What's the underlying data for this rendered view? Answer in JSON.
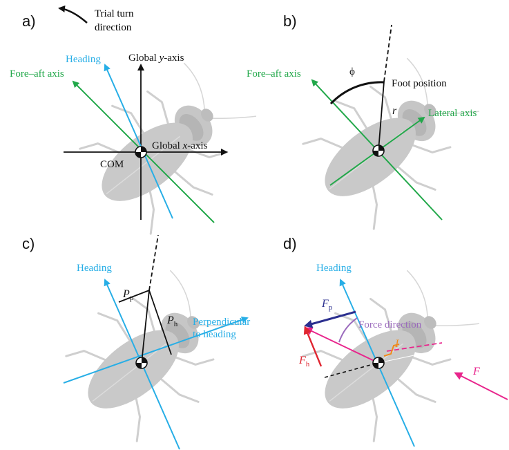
{
  "colors": {
    "green": "#22a84a",
    "blue": "#27aee6",
    "black": "#111111",
    "purple": "#9b6bbd",
    "navy": "#2b2f8f",
    "red": "#e02530",
    "magenta": "#e8258c",
    "orange": "#f08a1c",
    "body_gray": "#c9c9c9"
  },
  "panels": {
    "a": {
      "letter": "a)",
      "turn_label_line1": "Trial turn",
      "turn_label_line2": "direction",
      "heading": "Heading",
      "global_y_prefix": "Global ",
      "global_y_var": "y",
      "global_y_suffix": "-axis",
      "fore_aft": "Fore–aft axis",
      "global_x_prefix": "Global ",
      "global_x_var": "x",
      "global_x_suffix": "-axis",
      "com": "COM"
    },
    "b": {
      "letter": "b)",
      "fore_aft": "Fore–aft axis",
      "phi": "ϕ",
      "foot_position": "Foot position",
      "r": "r",
      "lateral": "Lateral axis"
    },
    "c": {
      "letter": "c)",
      "heading": "Heading",
      "pp_main": "P",
      "pp_sub": "p",
      "ph_main": "P",
      "ph_sub": "h",
      "perp_line1": "Perpendicular",
      "perp_line2": "to heading"
    },
    "d": {
      "letter": "d)",
      "heading": "Heading",
      "fp_main": "F",
      "fp_sub": "p",
      "force_direction": "Force direction",
      "i_label": "I",
      "fh_main": "F",
      "fh_sub": "h",
      "f_label": "F"
    }
  }
}
